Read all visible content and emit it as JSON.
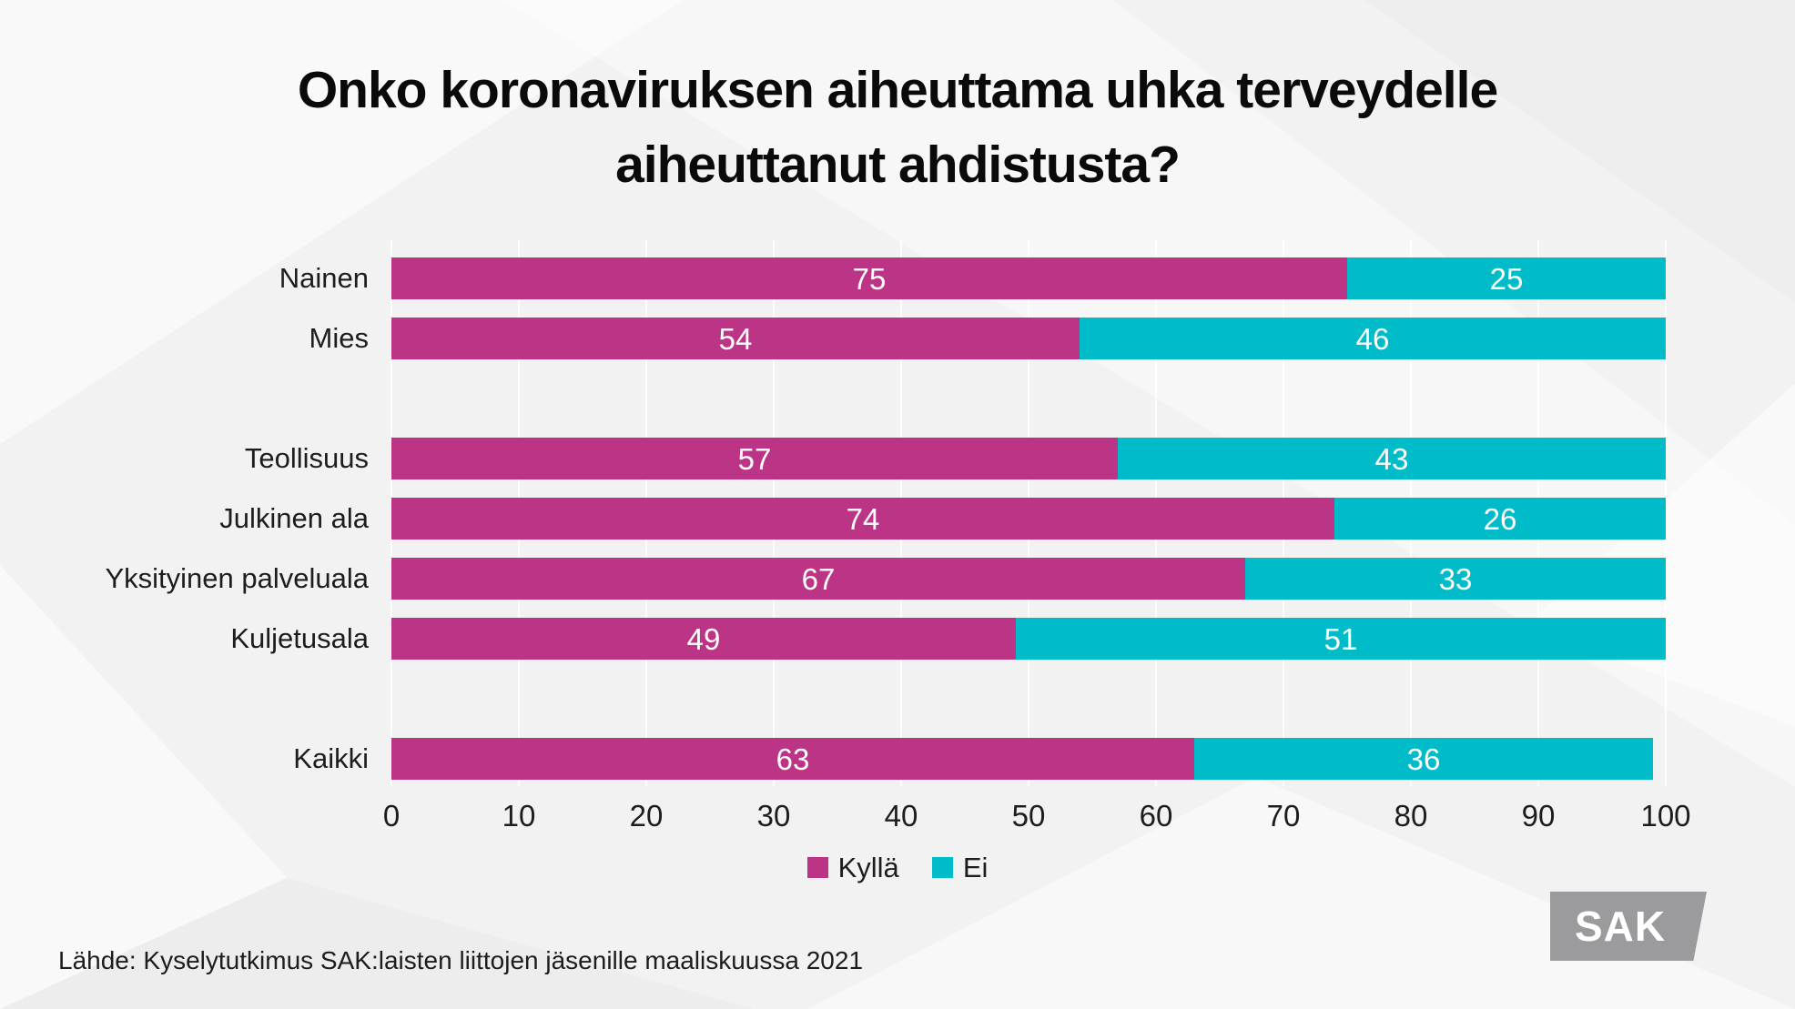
{
  "title": {
    "line1": "Onko koronaviruksen aiheuttama uhka terveydelle",
    "line2": "aiheuttanut ahdistusta?"
  },
  "chart_data": {
    "type": "bar",
    "orientation": "horizontal",
    "stacked": true,
    "title": "Onko koronaviruksen aiheuttama uhka terveydelle aiheuttanut ahdistusta?",
    "categories": [
      "Nainen",
      "Mies",
      "Teollisuus",
      "Julkinen ala",
      "Yksityinen palveluala",
      "Kuljetusala",
      "Kaikki"
    ],
    "series": [
      {
        "name": "Kyllä",
        "color": "#bc3486",
        "values": [
          75,
          54,
          57,
          74,
          67,
          49,
          63
        ]
      },
      {
        "name": "Ei",
        "color": "#00bcc9",
        "values": [
          25,
          46,
          43,
          26,
          33,
          51,
          36
        ]
      }
    ],
    "group_break_after_indices": [
      1,
      5
    ],
    "xlim": [
      0,
      100
    ],
    "x_ticks": [
      0,
      10,
      20,
      30,
      40,
      50,
      60,
      70,
      80,
      90,
      100
    ],
    "grid": "white vertical lines at each tick",
    "legend_position": "bottom",
    "value_labels": "inside segments, white"
  },
  "legend": [
    {
      "label": "Kyllä",
      "color": "#bc3486"
    },
    {
      "label": "Ei",
      "color": "#00bcc9"
    }
  ],
  "source": "Lähde: Kyselytutkimus SAK:laisten liittojen jäsenille maaliskuussa 2021",
  "logo": {
    "text": "SAK",
    "background": "#9b9a9c"
  }
}
